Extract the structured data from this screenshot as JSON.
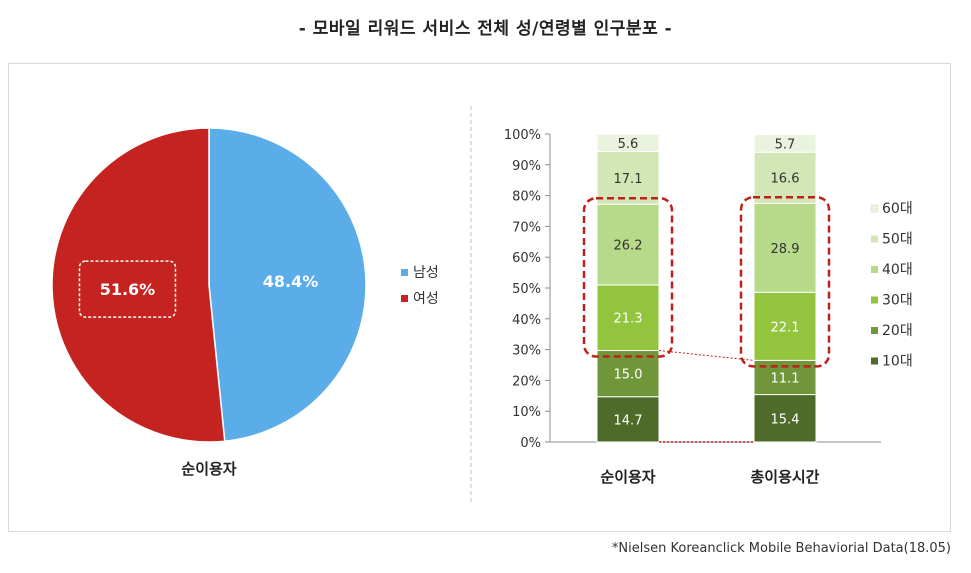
{
  "title": "- 모바일 리워드 서비스 전체 성/연령별 인구분포 -",
  "footnote": "*Nielsen Koreanclick Mobile Behaviorial Data(18.05)",
  "chart_data": [
    {
      "type": "pie",
      "xlabel": "순이용자",
      "slices": [
        {
          "label": "남성",
          "value": 48.4,
          "display": "48.4%",
          "color": "#5aade8"
        },
        {
          "label": "여성",
          "value": 51.6,
          "display": "51.6%",
          "color": "#c5231f"
        }
      ],
      "legend": {
        "position": "right",
        "entries": [
          "남성",
          "여성"
        ]
      },
      "highlight": "여성"
    },
    {
      "type": "bar",
      "stacked": true,
      "categories": [
        "순이용자",
        "총이용시간"
      ],
      "yticks": [
        "0%",
        "10%",
        "20%",
        "30%",
        "40%",
        "50%",
        "60%",
        "70%",
        "80%",
        "90%",
        "100%"
      ],
      "ylim": [
        0,
        100
      ],
      "series": [
        {
          "name": "10대",
          "values": [
            14.7,
            15.4
          ],
          "labels": [
            "14.7",
            "15.4"
          ],
          "color": "#4e6b2a"
        },
        {
          "name": "20대",
          "values": [
            15.0,
            11.1
          ],
          "labels": [
            "15.0",
            "11.1"
          ],
          "color": "#6f9638"
        },
        {
          "name": "30대",
          "values": [
            21.3,
            22.1
          ],
          "labels": [
            "21.3",
            "22.1"
          ],
          "color": "#93c43e"
        },
        {
          "name": "40대",
          "values": [
            26.2,
            28.9
          ],
          "labels": [
            "26.2",
            "28.9"
          ],
          "color": "#b7d98a"
        },
        {
          "name": "50대",
          "values": [
            17.1,
            16.6
          ],
          "labels": [
            "17.1",
            "16.6"
          ],
          "color": "#d2e7b5"
        },
        {
          "name": "60대",
          "values": [
            5.6,
            5.7
          ],
          "labels": [
            "5.6",
            "5.7"
          ],
          "color": "#e9f3dd"
        }
      ],
      "legend": {
        "position": "right"
      },
      "highlight_series": [
        "30대",
        "40대"
      ]
    }
  ]
}
